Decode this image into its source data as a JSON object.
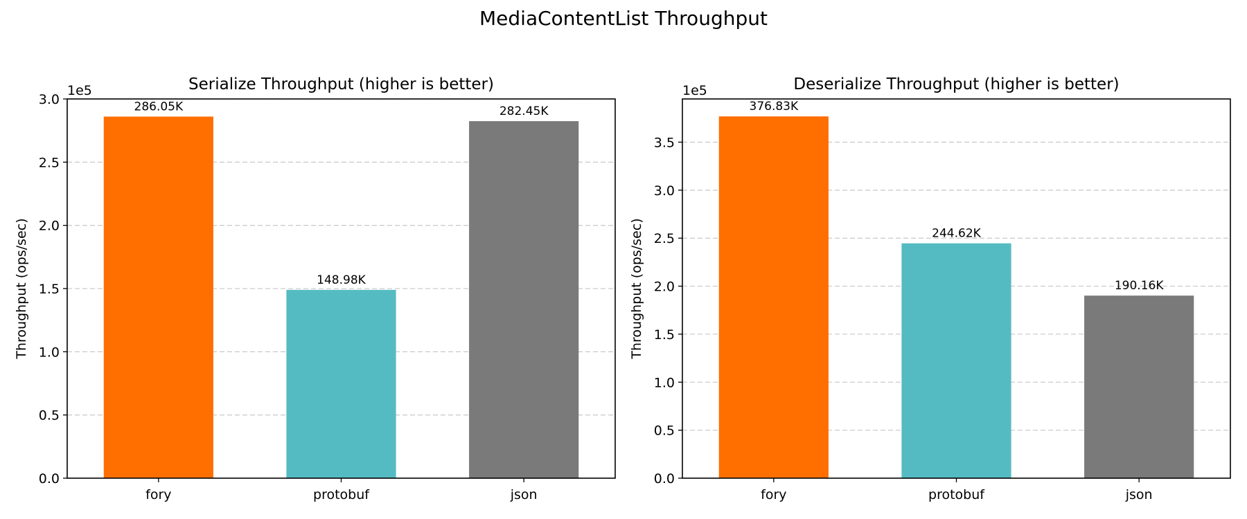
{
  "figure": {
    "title": "MediaContentList Throughput"
  },
  "chart_data": [
    {
      "type": "bar",
      "title": "Serialize Throughput (higher is better)",
      "xlabel": "",
      "ylabel": "Throughput (ops/sec)",
      "y_offset_label": "1e5",
      "categories": [
        "fory",
        "protobuf",
        "json"
      ],
      "values": [
        286050,
        148980,
        282450
      ],
      "data_labels": [
        "286.05K",
        "148.98K",
        "282.45K"
      ],
      "colors": [
        "#ff6f00",
        "#55bbc2",
        "#7a7a7a"
      ],
      "ylim": [
        0,
        300000
      ],
      "yticks": [
        0,
        50000,
        100000,
        150000,
        200000,
        250000,
        300000
      ],
      "ytick_labels": [
        "0.0",
        "0.5",
        "1.0",
        "1.5",
        "2.0",
        "2.5",
        "3.0"
      ],
      "grid": "y-dashed",
      "legend": "none"
    },
    {
      "type": "bar",
      "title": "Deserialize Throughput (higher is better)",
      "xlabel": "",
      "ylabel": "Throughput (ops/sec)",
      "y_offset_label": "1e5",
      "categories": [
        "fory",
        "protobuf",
        "json"
      ],
      "values": [
        376830,
        244620,
        190160
      ],
      "data_labels": [
        "376.83K",
        "244.62K",
        "190.16K"
      ],
      "colors": [
        "#ff6f00",
        "#55bbc2",
        "#7a7a7a"
      ],
      "ylim": [
        0,
        395000
      ],
      "yticks": [
        0,
        50000,
        100000,
        150000,
        200000,
        250000,
        300000,
        350000
      ],
      "ytick_labels": [
        "0.0",
        "0.5",
        "1.0",
        "1.5",
        "2.0",
        "2.5",
        "3.0",
        "3.5"
      ],
      "grid": "y-dashed",
      "legend": "none"
    }
  ]
}
